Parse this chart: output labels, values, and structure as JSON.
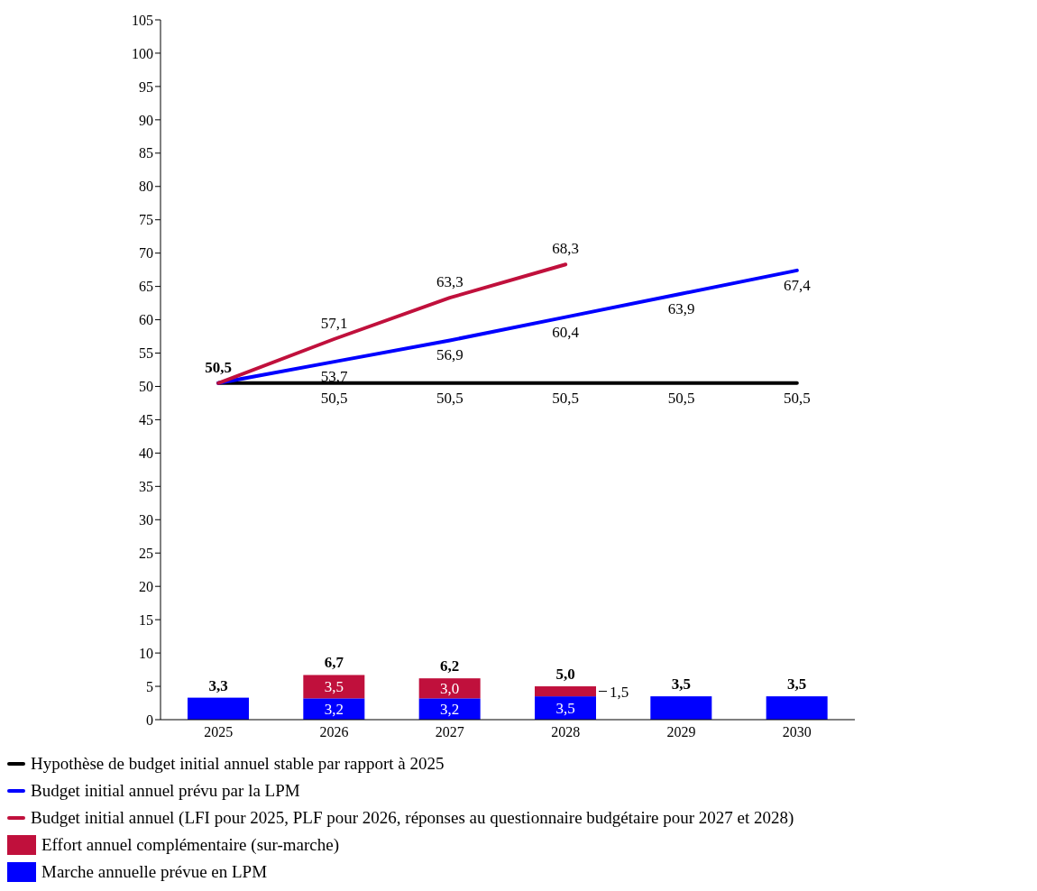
{
  "chart_data": {
    "type": "bar",
    "stacked": true,
    "categories": [
      "2025",
      "2026",
      "2027",
      "2028",
      "2029",
      "2030"
    ],
    "series": [
      {
        "name": "Hypothèse de budget initial annuel stable par rapport à 2025",
        "type": "line",
        "color": "#000000",
        "values": [
          50.5,
          50.5,
          50.5,
          50.5,
          50.5,
          50.5
        ],
        "value_labels": [
          "50,5",
          "50,5",
          "50,5",
          "50,5",
          "50,5",
          "50,5"
        ]
      },
      {
        "name": "Budget initial annuel prévu par la LPM",
        "type": "line",
        "color": "#0000ff",
        "values": [
          50.5,
          53.7,
          56.9,
          60.4,
          63.9,
          67.4
        ],
        "value_labels": [
          null,
          "53,7",
          "56,9",
          "60,4",
          "63,9",
          "67,4"
        ]
      },
      {
        "name": "Budget initial annuel (LFI pour 2025, PLF pour 2026, réponses au questionnaire budgétaire pour 2027 et 2028)",
        "type": "line",
        "color": "#c0103c",
        "values": [
          50.5,
          57.1,
          63.3,
          68.3,
          null,
          null
        ],
        "value_labels": [
          null,
          "57,1",
          "63,3",
          "68,3",
          null,
          null
        ]
      },
      {
        "name": "Marche annuelle prévue en LPM",
        "color": "#0000ff",
        "values": [
          3.3,
          3.2,
          3.2,
          3.5,
          3.5,
          3.5
        ],
        "value_labels": [
          null,
          "3,2",
          "3,2",
          "3,5",
          null,
          null
        ]
      },
      {
        "name": "Effort annuel complémentaire (sur-marche)",
        "color": "#c0103c",
        "values": [
          null,
          3.5,
          3.0,
          1.5,
          null,
          null
        ],
        "value_labels": [
          null,
          "3,5",
          "3,0",
          "1,5",
          null,
          null
        ]
      }
    ],
    "totals": [
      "3,3",
      "6,7",
      "6,2",
      "5,0",
      "3,5",
      "3,5"
    ],
    "ylim": [
      0,
      105
    ],
    "yticks": [
      0,
      5,
      10,
      15,
      20,
      25,
      30,
      35,
      40,
      45,
      50,
      55,
      60,
      65,
      70,
      75,
      80,
      85,
      90,
      95,
      100,
      105
    ],
    "grid": false,
    "legend": "bottom",
    "marker": "none",
    "line_style": "solid"
  }
}
